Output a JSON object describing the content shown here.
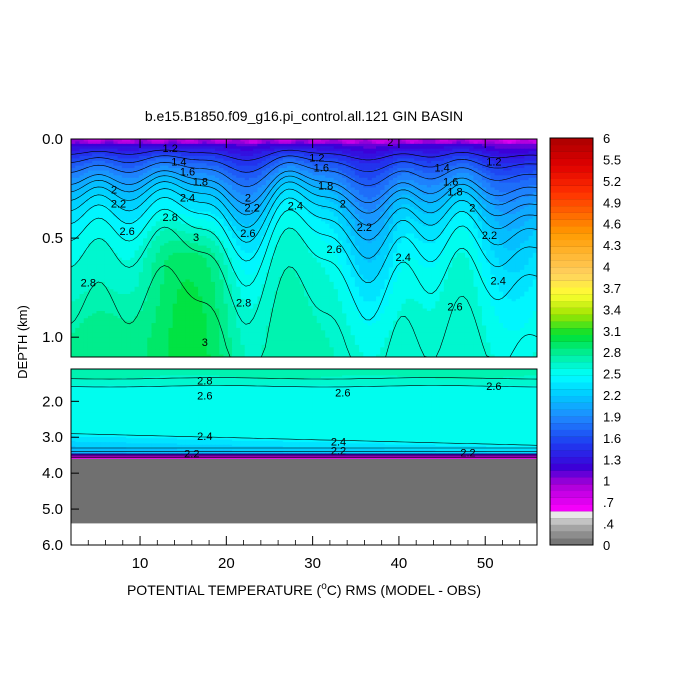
{
  "chart_data": {
    "type": "heatmap",
    "title": "b.e15.B1850.f09_g16.pi_control.all.121 GIN BASIN",
    "xlabel_pre": "POTENTIAL TEMPERATURE (",
    "xlabel_sup": "o",
    "xlabel_post": "C) RMS (MODEL - OBS)",
    "ylabel": "DEPTH (km)",
    "xlim": [
      2,
      56
    ],
    "x_ticks": [
      "10",
      "20",
      "30",
      "40",
      "50"
    ],
    "x_tick_values": [
      10,
      20,
      30,
      40,
      50
    ],
    "upper_panel": {
      "ylim": [
        0.0,
        1.1
      ],
      "y_ticks": [
        "0.0",
        "0.5",
        "1.0"
      ],
      "y_tick_values": [
        0.0,
        0.5,
        1.0
      ]
    },
    "lower_panel": {
      "ylim": [
        1.1,
        6.0
      ],
      "y_ticks": [
        "2.0",
        "3.0",
        "4.0",
        "5.0",
        "6.0"
      ],
      "y_tick_values": [
        2.0,
        3.0,
        4.0,
        5.0,
        6.0
      ],
      "land_top_depth": 3.6,
      "land_bottom_depth": 5.4
    },
    "contour_labels_upper": [
      {
        "x": 13.5,
        "y": 0.05,
        "v": "1.2"
      },
      {
        "x": 14.5,
        "y": 0.12,
        "v": "1.4"
      },
      {
        "x": 15.5,
        "y": 0.17,
        "v": "1.6"
      },
      {
        "x": 17.0,
        "y": 0.22,
        "v": "1.8"
      },
      {
        "x": 7.0,
        "y": 0.26,
        "v": "2"
      },
      {
        "x": 7.5,
        "y": 0.33,
        "v": "2.2"
      },
      {
        "x": 15.5,
        "y": 0.3,
        "v": "2.4"
      },
      {
        "x": 13.5,
        "y": 0.4,
        "v": "2.8"
      },
      {
        "x": 8.5,
        "y": 0.47,
        "v": "2.6"
      },
      {
        "x": 16.5,
        "y": 0.5,
        "v": "3"
      },
      {
        "x": 22.5,
        "y": 0.3,
        "v": "2"
      },
      {
        "x": 23.0,
        "y": 0.35,
        "v": "2.2"
      },
      {
        "x": 22.5,
        "y": 0.48,
        "v": "2.6"
      },
      {
        "x": 28.0,
        "y": 0.34,
        "v": "2.4"
      },
      {
        "x": 4.0,
        "y": 0.73,
        "v": "2.8"
      },
      {
        "x": 22.0,
        "y": 0.83,
        "v": "2.8"
      },
      {
        "x": 17.5,
        "y": 1.03,
        "v": "3"
      },
      {
        "x": 30.5,
        "y": 0.1,
        "v": "1.2"
      },
      {
        "x": 31.0,
        "y": 0.15,
        "v": "1.6"
      },
      {
        "x": 31.5,
        "y": 0.24,
        "v": "1.8"
      },
      {
        "x": 33.5,
        "y": 0.33,
        "v": "2"
      },
      {
        "x": 36.0,
        "y": 0.45,
        "v": "2.2"
      },
      {
        "x": 32.5,
        "y": 0.56,
        "v": "2.6"
      },
      {
        "x": 40.5,
        "y": 0.6,
        "v": "2.4"
      },
      {
        "x": 45.0,
        "y": 0.15,
        "v": "1.4"
      },
      {
        "x": 46.0,
        "y": 0.22,
        "v": "1.6"
      },
      {
        "x": 46.5,
        "y": 0.27,
        "v": "1.8"
      },
      {
        "x": 51.0,
        "y": 0.12,
        "v": "1.2"
      },
      {
        "x": 48.5,
        "y": 0.35,
        "v": "2"
      },
      {
        "x": 50.5,
        "y": 0.49,
        "v": "2.2"
      },
      {
        "x": 51.5,
        "y": 0.72,
        "v": "2.4"
      },
      {
        "x": 46.5,
        "y": 0.85,
        "v": "2.6"
      },
      {
        "x": 39.0,
        "y": 0.02,
        "v": "2"
      }
    ],
    "contour_labels_lower": [
      {
        "x": 17.5,
        "y": 1.45,
        "v": "2.8"
      },
      {
        "x": 17.5,
        "y": 1.87,
        "v": "2.6"
      },
      {
        "x": 33.5,
        "y": 1.78,
        "v": "2.6"
      },
      {
        "x": 51.0,
        "y": 1.6,
        "v": "2.6"
      },
      {
        "x": 17.5,
        "y": 3.0,
        "v": "2.4"
      },
      {
        "x": 33.0,
        "y": 3.15,
        "v": "2.4"
      },
      {
        "x": 33.0,
        "y": 3.4,
        "v": "2.2"
      },
      {
        "x": 16.0,
        "y": 3.48,
        "v": "2.2"
      },
      {
        "x": 48.0,
        "y": 3.45,
        "v": "2.2"
      }
    ],
    "colorbar": {
      "labels": [
        "6",
        "5.5",
        "5.2",
        "4.9",
        "4.6",
        "4.3",
        "4",
        "3.7",
        "3.4",
        "3.1",
        "2.8",
        "2.5",
        "2.2",
        "1.9",
        "1.6",
        "1.3",
        "1",
        ".7",
        ".4",
        "0"
      ],
      "levels": [
        0.0,
        0.1,
        0.2,
        0.3,
        0.4,
        0.5,
        0.6,
        0.7,
        0.8,
        0.9,
        1.0,
        1.1,
        1.2,
        1.3,
        1.4,
        1.5,
        1.6,
        1.7,
        1.8,
        1.9,
        2.0,
        2.1,
        2.2,
        2.3,
        2.4,
        2.5,
        2.6,
        2.7,
        2.8,
        2.9,
        3.0,
        3.1,
        3.2,
        3.3,
        3.4,
        3.5,
        3.6,
        3.7,
        3.8,
        3.9,
        4.0,
        4.1,
        4.2,
        4.3,
        4.4,
        4.5,
        4.6,
        4.7,
        4.8,
        4.9,
        5.0,
        5.1,
        5.2,
        5.3,
        5.4,
        5.5,
        5.6,
        5.7,
        5.8,
        5.9,
        6.0
      ],
      "range": [
        0,
        6
      ],
      "palette_stops": [
        {
          "v": 0.0,
          "c": "#6a6a6a"
        },
        {
          "v": 0.3,
          "c": "#b0b0b0"
        },
        {
          "v": 0.45,
          "c": "#e8e8e8"
        },
        {
          "v": 0.5,
          "c": "#ff00ff"
        },
        {
          "v": 0.9,
          "c": "#a800d8"
        },
        {
          "v": 1.15,
          "c": "#3c00d8"
        },
        {
          "v": 1.5,
          "c": "#1e3cf0"
        },
        {
          "v": 1.9,
          "c": "#1e8cff"
        },
        {
          "v": 2.2,
          "c": "#00c8ff"
        },
        {
          "v": 2.5,
          "c": "#00ffff"
        },
        {
          "v": 2.8,
          "c": "#00f0a0"
        },
        {
          "v": 3.1,
          "c": "#00e030"
        },
        {
          "v": 3.4,
          "c": "#a0e600"
        },
        {
          "v": 3.7,
          "c": "#ffff30"
        },
        {
          "v": 4.0,
          "c": "#ffd060"
        },
        {
          "v": 4.6,
          "c": "#ff9a00"
        },
        {
          "v": 5.2,
          "c": "#ff3000"
        },
        {
          "v": 5.6,
          "c": "#e00000"
        },
        {
          "v": 6.0,
          "c": "#aa0000"
        }
      ]
    },
    "land_color": "#707070",
    "background_color": "#ffffff"
  }
}
